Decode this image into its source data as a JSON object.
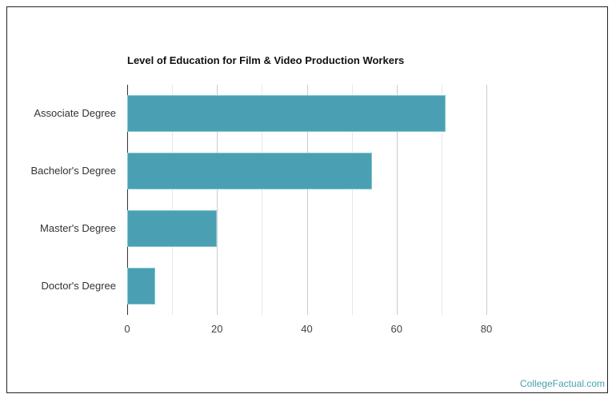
{
  "chart_data": {
    "type": "bar",
    "orientation": "horizontal",
    "title": "Level of Education for Film & Video Production Workers",
    "categories": [
      "Associate Degree",
      "Bachelor's Degree",
      "Master's Degree",
      "Doctor's Degree"
    ],
    "values": [
      70.9,
      54.5,
      20.0,
      6.2
    ],
    "xlabel": "",
    "ylabel": "",
    "xlim": [
      0,
      80
    ],
    "xticks": [
      "0",
      "20",
      "40",
      "60",
      "80"
    ],
    "grid": true,
    "legend": null,
    "bar_color": "#4aa0b2"
  },
  "credit": "CollegeFactual.com",
  "colors": {
    "bar": "#4aa0b2",
    "grid_major": "#cccccc",
    "grid_minor": "#e8e8e8",
    "credit": "#4a9fb0"
  }
}
